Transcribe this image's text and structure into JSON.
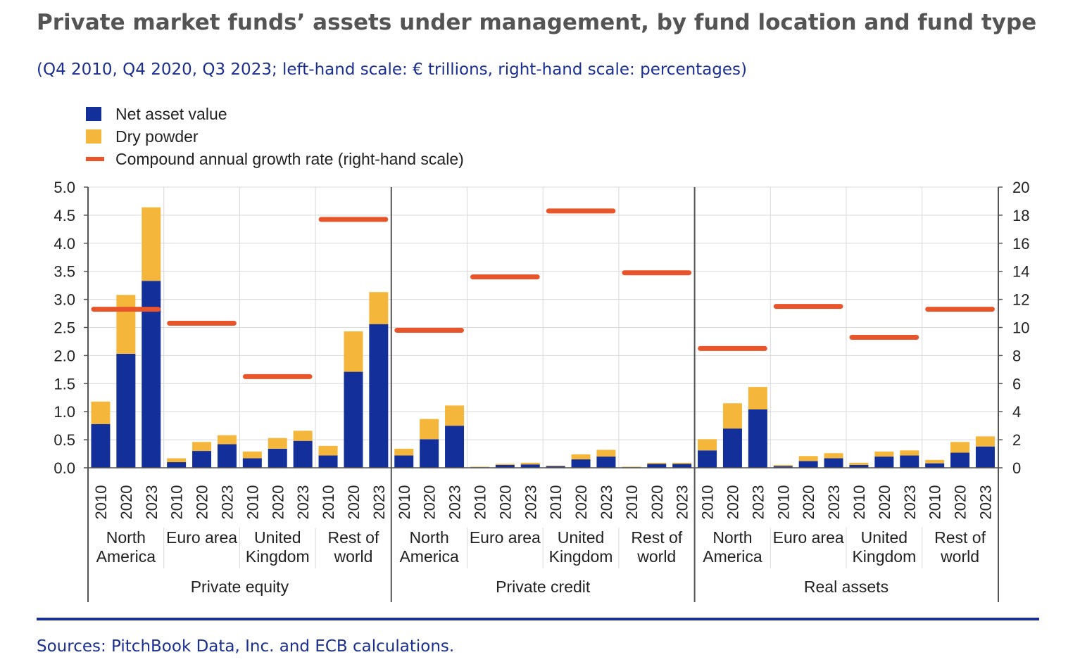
{
  "title": "Private market funds’ assets under management, by fund location and fund type",
  "subtitle": "(Q4 2010, Q4 2020, Q3 2023; left-hand scale: € trillions, right-hand scale: percentages)",
  "source": "Sources: PitchBook Data, Inc. and ECB calculations.",
  "colors": {
    "nav": "#13309a",
    "dry": "#f5b73b",
    "cagr": "#e8552b"
  },
  "chart_data": {
    "type": "bar",
    "stacked": true,
    "grid": true,
    "legend_position": "top-left",
    "legend": [
      "Net asset value",
      "Dry powder",
      "Compound annual growth rate (right-hand scale)"
    ],
    "ylim_left": [
      0,
      5.0
    ],
    "ylim_right": [
      0,
      20
    ],
    "yticks_left": [
      "0.0",
      "0.5",
      "1.0",
      "1.5",
      "2.0",
      "2.5",
      "3.0",
      "3.5",
      "4.0",
      "4.5",
      "5.0"
    ],
    "yticks_right": [
      "0",
      "2",
      "4",
      "6",
      "8",
      "10",
      "12",
      "14",
      "16",
      "18",
      "20"
    ],
    "years": [
      "2010",
      "2020",
      "2023"
    ],
    "panels": [
      {
        "fund_type": "Private equity",
        "locations": [
          {
            "label": [
              "North",
              "America"
            ],
            "nav": [
              0.78,
              2.03,
              3.33
            ],
            "dry": [
              0.4,
              1.05,
              1.31
            ],
            "cagr": 11.3
          },
          {
            "label": [
              "Euro area"
            ],
            "nav": [
              0.1,
              0.3,
              0.42
            ],
            "dry": [
              0.07,
              0.16,
              0.16
            ],
            "cagr": 10.3
          },
          {
            "label": [
              "United",
              "Kingdom"
            ],
            "nav": [
              0.17,
              0.34,
              0.48
            ],
            "dry": [
              0.12,
              0.19,
              0.18
            ],
            "cagr": 6.5
          },
          {
            "label": [
              "Rest of",
              "world"
            ],
            "nav": [
              0.22,
              1.71,
              2.56
            ],
            "dry": [
              0.17,
              0.72,
              0.57
            ],
            "cagr": 17.7
          }
        ]
      },
      {
        "fund_type": "Private credit",
        "locations": [
          {
            "label": [
              "North",
              "America"
            ],
            "nav": [
              0.22,
              0.51,
              0.75
            ],
            "dry": [
              0.12,
              0.36,
              0.36
            ],
            "cagr": 9.8
          },
          {
            "label": [
              "Euro area"
            ],
            "nav": [
              0.01,
              0.05,
              0.06
            ],
            "dry": [
              0.01,
              0.02,
              0.03
            ],
            "cagr": 13.6
          },
          {
            "label": [
              "United",
              "Kingdom"
            ],
            "nav": [
              0.03,
              0.15,
              0.2
            ],
            "dry": [
              0.01,
              0.09,
              0.12
            ],
            "cagr": 18.3
          },
          {
            "label": [
              "Rest of",
              "world"
            ],
            "nav": [
              0.01,
              0.07,
              0.07
            ],
            "dry": [
              0.01,
              0.02,
              0.02
            ],
            "cagr": 13.9
          }
        ]
      },
      {
        "fund_type": "Real assets",
        "locations": [
          {
            "label": [
              "North",
              "America"
            ],
            "nav": [
              0.31,
              0.7,
              1.04
            ],
            "dry": [
              0.2,
              0.45,
              0.4
            ],
            "cagr": 8.5
          },
          {
            "label": [
              "Euro area"
            ],
            "nav": [
              0.03,
              0.12,
              0.17
            ],
            "dry": [
              0.02,
              0.09,
              0.09
            ],
            "cagr": 11.5
          },
          {
            "label": [
              "United",
              "Kingdom"
            ],
            "nav": [
              0.05,
              0.2,
              0.22
            ],
            "dry": [
              0.04,
              0.09,
              0.09
            ],
            "cagr": 9.3
          },
          {
            "label": [
              "Rest of",
              "world"
            ],
            "nav": [
              0.08,
              0.27,
              0.38
            ],
            "dry": [
              0.06,
              0.19,
              0.18
            ],
            "cagr": 11.3
          }
        ]
      }
    ]
  }
}
